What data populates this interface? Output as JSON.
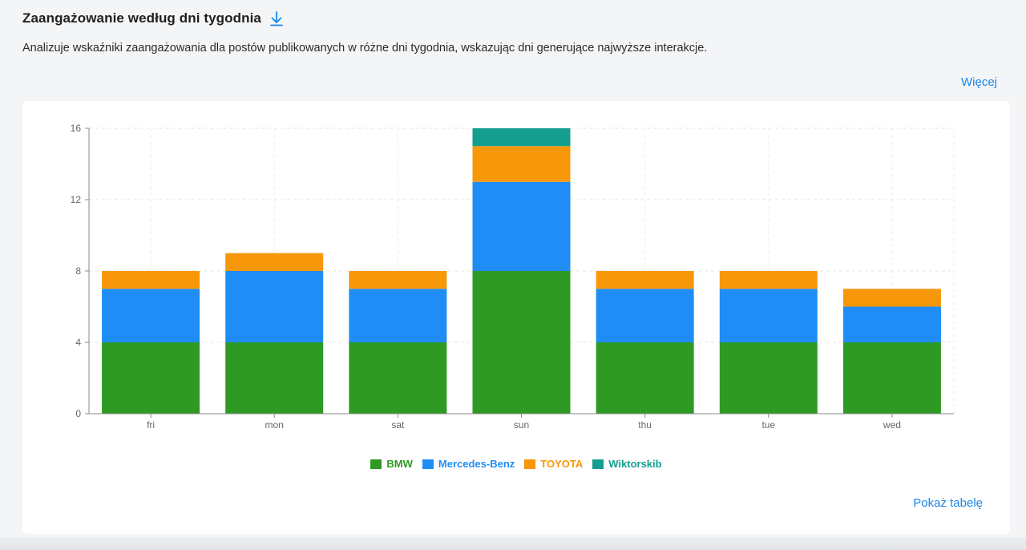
{
  "header": {
    "title": "Zaangażowanie według dni tygodnia",
    "download_icon": "download-arrow-icon",
    "description": "Analizuje wskaźniki zaangażowania dla postów publikowanych w różne dni tygodnia, wskazując dni generujące najwyższe interakcje.",
    "more_label": "Więcej"
  },
  "footer": {
    "show_table_label": "Pokaż tabelę"
  },
  "colors": {
    "accent": "#1b86e8"
  },
  "chart_data": {
    "type": "bar",
    "stacked": true,
    "categories": [
      "fri",
      "mon",
      "sat",
      "sun",
      "thu",
      "tue",
      "wed"
    ],
    "series": [
      {
        "name": "BMW",
        "color": "#2e9a23",
        "values": [
          4,
          4,
          4,
          8,
          4,
          4,
          4
        ]
      },
      {
        "name": "Mercedes-Benz",
        "color": "#1f8df5",
        "values": [
          3,
          4,
          3,
          5,
          3,
          3,
          2
        ]
      },
      {
        "name": "TOYOTA",
        "color": "#f7970a",
        "values": [
          1,
          1,
          1,
          2,
          1,
          1,
          1
        ]
      },
      {
        "name": "Wiktorskib",
        "color": "#139e8f",
        "values": [
          0,
          0,
          0,
          1,
          0,
          0,
          0
        ]
      }
    ],
    "ylim": [
      0,
      16
    ],
    "yticks": [
      "0",
      "4",
      "8",
      "12",
      "16"
    ],
    "grid": true,
    "legend_position": "bottom-center",
    "title": "",
    "xlabel": "",
    "ylabel": ""
  }
}
